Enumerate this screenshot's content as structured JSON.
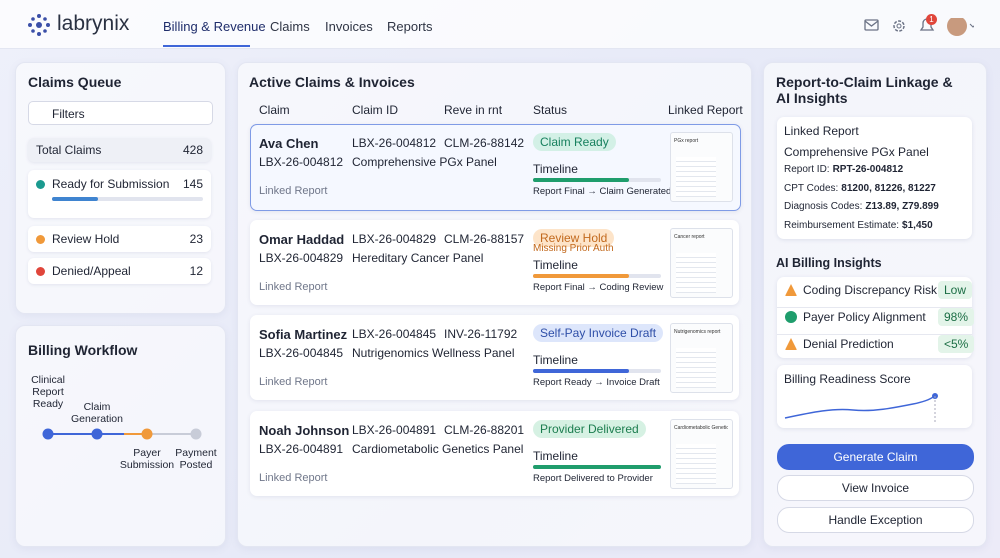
{
  "header": {
    "brand": "labrynix",
    "nav": [
      "Billing & Revenue",
      "Claims",
      "Invoices",
      "Reports"
    ],
    "notification_count": "1"
  },
  "claims_queue": {
    "title": "Claims Queue",
    "filter": "Filters",
    "items": [
      {
        "label": "Total Claims",
        "count": "428"
      },
      {
        "label": "Ready for Submission",
        "count": "145"
      },
      {
        "label": "Review Hold",
        "count": "23"
      },
      {
        "label": "Denied/Appeal",
        "count": "12"
      }
    ]
  },
  "workflow": {
    "title": "Billing Workflow",
    "steps": [
      "Clinical Report Ready",
      "Claim Generation",
      "Payer Submission",
      "Payment Posted"
    ]
  },
  "active": {
    "title": "Active Claims & Invoices",
    "columns": [
      "Claim",
      "Claim ID",
      "Reve in rnt",
      "Status",
      "Linked Report"
    ],
    "rows": [
      {
        "name": "Ava Chen",
        "patient_id": "LBX-26-004812",
        "linked": "Linked Report",
        "claim_id": "LBX-26-004812",
        "panel": "Comprehensive PGx Panel",
        "number": "CLM-26-88142",
        "status": "Claim Ready",
        "timeline": "Timeline",
        "timeline_text": "Report Final → Claim Generated",
        "thumb": "PGx report"
      },
      {
        "name": "Omar Haddad",
        "patient_id": "LBX-26-004829",
        "linked": "Linked Report",
        "claim_id": "LBX-26-004829",
        "panel": "Hereditary Cancer Panel",
        "number": "CLM-26-88157",
        "status": "Review Hold",
        "note": "Missing Prior Auth",
        "timeline": "Timeline",
        "timeline_text": "Report Final → Coding Review",
        "thumb": "Cancer report"
      },
      {
        "name": "Sofia Martinez",
        "patient_id": "LBX-26-004845",
        "linked": "Linked Report",
        "claim_id": "LBX-26-004845",
        "panel": "Nutrigenomics Wellness Panel",
        "number": "INV-26-11792",
        "status": "Self-Pay Invoice Draft",
        "timeline": "Timeline",
        "timeline_text": "Report Ready → Invoice Draft",
        "thumb": "Nutrigenomics report"
      },
      {
        "name": "Noah Johnson",
        "patient_id": "LBX-26-004891",
        "linked": "Linked Report",
        "claim_id": "LBX-26-004891",
        "panel": "Cardiometabolic Genetics Panel",
        "number": "CLM-26-88201",
        "status": "Provider Delivered",
        "timeline": "Timeline",
        "timeline_text": "Report Delivered to Provider",
        "thumb": "Cardiometabolic Genetics Panel"
      }
    ]
  },
  "linkage": {
    "title": "Report-to-Claim Linkage & AI Insights",
    "card_title": "Linked Report",
    "panel": "Comprehensive PGx Panel",
    "fields": [
      {
        "label": "Report ID:",
        "value": "RPT-26-004812"
      },
      {
        "label": "CPT Codes:",
        "value": "81200, 81226, 81227"
      },
      {
        "label": "Diagnosis Codes:",
        "value": "Z13.89, Z79.899"
      },
      {
        "label": "Reimbursement Estimate:",
        "value": "$1,450"
      }
    ],
    "insights_title": "AI Billing Insights",
    "insights": [
      {
        "label": "Coding Discrepancy Risk",
        "badge": "Low"
      },
      {
        "label": "Payer Policy Alignment",
        "badge": "98%"
      },
      {
        "label": "Denial Prediction",
        "badge": "<5%"
      }
    ],
    "score_title": "Billing Readiness Score",
    "buttons": [
      "Generate Claim",
      "View Invoice",
      "Handle Exception"
    ]
  }
}
